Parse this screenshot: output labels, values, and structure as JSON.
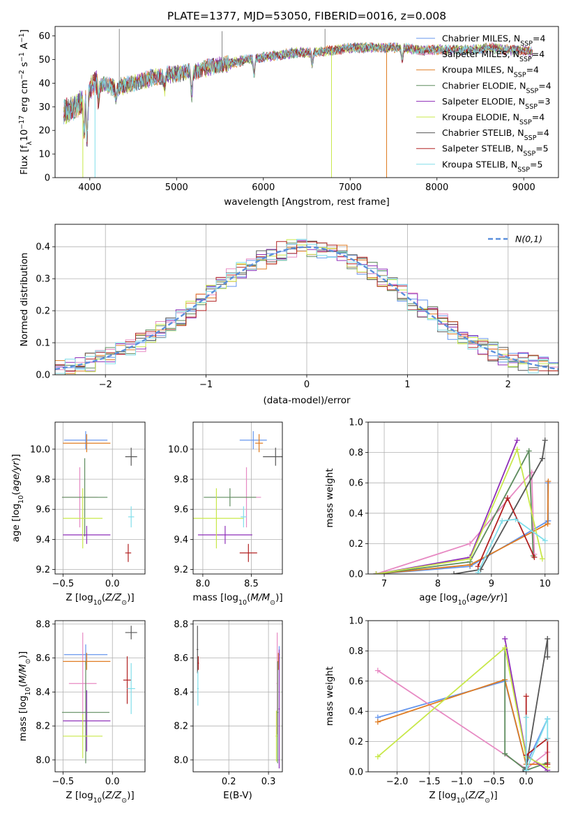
{
  "figure": {
    "title": "PLATE=1377, MJD=53050, FIBERID=0016, z=0.008"
  },
  "series": [
    {
      "name": "Chabrier MILES, N$_{SSP}$=4",
      "sub": "SSP",
      "label_pre": "Chabrier MILES, N",
      "label_post": "=4",
      "color": "#6495ed"
    },
    {
      "name": "Salpeter MILES, N$_{SSP}$=4",
      "sub": "SSP",
      "label_pre": "Salpeter MILES, N",
      "label_post": "=4",
      "color": "#e78ac3"
    },
    {
      "name": "Kroupa MILES, N$_{SSP}$=4",
      "sub": "SSP",
      "label_pre": "Kroupa MILES, N",
      "label_post": "=4",
      "color": "#e07b20"
    },
    {
      "name": "Chabrier ELODIE, N$_{SSP}$=4",
      "sub": "SSP",
      "label_pre": "Chabrier ELODIE, N",
      "label_post": "=4",
      "color": "#5e8c5e"
    },
    {
      "name": "Salpeter ELODIE, N$_{SSP}$=3",
      "sub": "SSP",
      "label_pre": "Salpeter ELODIE, N",
      "label_post": "=3",
      "color": "#8e2eb8"
    },
    {
      "name": "Kroupa ELODIE, N$_{SSP}$=4",
      "sub": "SSP",
      "label_pre": "Kroupa ELODIE, N",
      "label_post": "=4",
      "color": "#c8e84a"
    },
    {
      "name": "Chabrier STELIB, N$_{SSP}$=4",
      "sub": "SSP",
      "label_pre": "Chabrier STELIB, N",
      "label_post": "=4",
      "color": "#555555"
    },
    {
      "name": "Salpeter STELIB, N$_{SSP}$=5",
      "sub": "SSP",
      "label_pre": "Salpeter STELIB, N",
      "label_post": "=5",
      "color": "#b22222"
    },
    {
      "name": "Kroupa STELIB, N$_{SSP}$=5",
      "sub": "SSP",
      "label_pre": "Kroupa STELIB, N",
      "label_post": "=5",
      "color": "#80deea"
    }
  ],
  "chart_data": [
    {
      "id": "spectrum",
      "type": "line",
      "xlabel": "wavelength [Angstrom, rest frame]",
      "ylabel": "Flux [f$_\\lambda$10$^{-17}$ erg cm$^{-2}$ s$^{-1}$ A$^{-1}$]",
      "xlim": [
        3600,
        9400
      ],
      "ylim": [
        0,
        64
      ],
      "xticks": [
        4000,
        5000,
        6000,
        7000,
        8000,
        9000
      ],
      "yticks": [
        0,
        10,
        20,
        30,
        40,
        50,
        60
      ],
      "grid": false,
      "legend": "top-right",
      "continuum": {
        "x": [
          3700,
          3800,
          3900,
          4000,
          4050,
          4100,
          4200,
          4300,
          4400,
          4500,
          4600,
          4800,
          5000,
          5200,
          5400,
          5600,
          5800,
          6000,
          6200,
          6400,
          6600,
          6800,
          7000,
          7200,
          7400,
          7600,
          7800,
          8000,
          8200,
          8400,
          8600,
          8800,
          9000,
          9100
        ],
        "y": [
          28,
          29,
          32,
          37,
          41,
          40,
          39,
          38,
          39,
          40,
          41,
          43,
          44,
          45,
          47,
          48,
          50,
          51,
          52,
          53,
          53,
          54,
          55,
          55,
          55,
          55,
          54,
          54,
          54,
          54,
          55,
          54,
          54,
          53
        ]
      },
      "features": [
        {
          "x": 3934,
          "y": 18
        },
        {
          "x": 3969,
          "y": 15
        },
        {
          "x": 4102,
          "y": 33
        },
        {
          "x": 4300,
          "y": 34
        },
        {
          "x": 4861,
          "y": 38
        },
        {
          "x": 5175,
          "y": 35
        },
        {
          "x": 5893,
          "y": 44
        },
        {
          "x": 6563,
          "y": 48
        },
        {
          "x": 7600,
          "y": 50
        }
      ],
      "spikes_up": [
        {
          "x": 4340,
          "y": 63
        },
        {
          "x": 5525,
          "y": 62
        },
        {
          "x": 6710,
          "y": 63
        }
      ],
      "spikes_down": [
        {
          "x": 3920,
          "y": 0,
          "series": 5
        },
        {
          "x": 4060,
          "y": 0,
          "series": 8
        },
        {
          "x": 6785,
          "y": 0,
          "series": 5
        },
        {
          "x": 7420,
          "y": 0,
          "series": 2
        }
      ]
    },
    {
      "id": "residual_hist",
      "type": "histogram",
      "xlabel": "(data-model)/error",
      "ylabel": "Normed distribution",
      "xlim": [
        -2.5,
        2.5
      ],
      "ylim": [
        0,
        0.47
      ],
      "xticks": [
        -2,
        -1,
        0,
        1,
        2
      ],
      "yticks": [
        0.0,
        0.1,
        0.2,
        0.3,
        0.4
      ],
      "grid": true,
      "legend": "top-right",
      "gaussian_label": "N(0,1)",
      "gaussian": {
        "mean": 0,
        "sigma": 1,
        "color": "#5b8fdc"
      },
      "bin_width": 0.1
    },
    {
      "id": "age_vs_Z",
      "type": "scatter",
      "xlabel": "Z [log$_{10}$(Z/Z$_\\odot$)]",
      "ylabel": "age  [log$_{10}$(age/yr)]",
      "xlim": [
        -0.58,
        0.33
      ],
      "ylim": [
        9.17,
        10.18
      ],
      "xticks": [
        -0.5,
        0.0
      ],
      "yticks": [
        9.2,
        9.4,
        9.6,
        9.8,
        10.0
      ],
      "grid": true,
      "points": [
        {
          "s": 0,
          "x": -0.27,
          "y": 10.06,
          "ex": 0.22,
          "ey": 0.06
        },
        {
          "s": 1,
          "x": -0.33,
          "y": 9.68,
          "ex": 0.18,
          "ey": 0.2
        },
        {
          "s": 2,
          "x": -0.26,
          "y": 10.04,
          "ex": 0.24,
          "ey": 0.06
        },
        {
          "s": 3,
          "x": -0.28,
          "y": 9.68,
          "ex": 0.23,
          "ey": 0.26
        },
        {
          "s": 4,
          "x": -0.26,
          "y": 9.43,
          "ex": 0.24,
          "ey": 0.06
        },
        {
          "s": 5,
          "x": -0.3,
          "y": 9.54,
          "ex": 0.2,
          "ey": 0.2
        },
        {
          "s": 6,
          "x": 0.19,
          "y": 9.95,
          "ex": 0.06,
          "ey": 0.06
        },
        {
          "s": 7,
          "x": 0.16,
          "y": 9.31,
          "ex": 0.03,
          "ey": 0.06
        },
        {
          "s": 8,
          "x": 0.19,
          "y": 9.55,
          "ex": 0.03,
          "ey": 0.07
        }
      ]
    },
    {
      "id": "age_vs_mass",
      "type": "scatter",
      "xlabel": "mass [log$_{10}$(M/M$_\\odot$)]",
      "ylabel": "",
      "xlim": [
        7.9,
        8.82
      ],
      "ylim": [
        9.17,
        10.18
      ],
      "xticks": [
        8.0,
        8.5
      ],
      "yticks": [
        9.2,
        9.4,
        9.6,
        9.8,
        10.0
      ],
      "grid": true,
      "points": [
        {
          "s": 0,
          "x": 8.52,
          "y": 10.06,
          "ex": 0.14,
          "ey": 0.06
        },
        {
          "s": 1,
          "x": 8.45,
          "y": 9.68,
          "ex": 0.15,
          "ey": 0.2
        },
        {
          "s": 2,
          "x": 8.58,
          "y": 10.04,
          "ex": 0.04,
          "ey": 0.06
        },
        {
          "s": 3,
          "x": 8.28,
          "y": 9.68,
          "ex": 0.27,
          "ey": 0.06
        },
        {
          "s": 4,
          "x": 8.23,
          "y": 9.43,
          "ex": 0.28,
          "ey": 0.06
        },
        {
          "s": 5,
          "x": 8.14,
          "y": 9.54,
          "ex": 0.28,
          "ey": 0.2
        },
        {
          "s": 6,
          "x": 8.75,
          "y": 9.95,
          "ex": 0.13,
          "ey": 0.06
        },
        {
          "s": 7,
          "x": 8.47,
          "y": 9.31,
          "ex": 0.09,
          "ey": 0.06
        },
        {
          "s": 8,
          "x": 8.42,
          "y": 9.55,
          "ex": 0.03,
          "ey": 0.07
        }
      ]
    },
    {
      "id": "weight_vs_age",
      "type": "line",
      "xlabel": "age  [log$_{10}$(age/yr)]",
      "ylabel": "mass weight",
      "xlim": [
        6.7,
        10.25
      ],
      "ylim": [
        0,
        1
      ],
      "xticks": [
        7,
        8,
        9,
        10
      ],
      "yticks": [
        0.0,
        0.2,
        0.4,
        0.6,
        0.8,
        1.0
      ],
      "grid": true,
      "lines": [
        {
          "s": 0,
          "x": [
            6.85,
            8.6,
            10.06,
            10.05
          ],
          "y": [
            0.0,
            0.05,
            0.35,
            0.6
          ]
        },
        {
          "s": 1,
          "x": [
            6.85,
            8.6,
            9.75,
            9.8
          ],
          "y": [
            0.0,
            0.2,
            0.67,
            0.13
          ]
        },
        {
          "s": 2,
          "x": [
            6.85,
            8.6,
            10.05,
            10.06
          ],
          "y": [
            0.0,
            0.06,
            0.33,
            0.61
          ]
        },
        {
          "s": 3,
          "x": [
            6.85,
            8.6,
            9.7,
            9.78
          ],
          "y": [
            0.0,
            0.08,
            0.81,
            0.12
          ]
        },
        {
          "s": 4,
          "x": [
            6.85,
            8.6,
            9.48
          ],
          "y": [
            0.0,
            0.11,
            0.88
          ]
        },
        {
          "s": 5,
          "x": [
            6.85,
            8.6,
            9.48,
            9.95
          ],
          "y": [
            0.0,
            0.1,
            0.82,
            0.1
          ]
        },
        {
          "s": 6,
          "x": [
            8.3,
            8.8,
            9.95,
            10.0
          ],
          "y": [
            0.0,
            0.03,
            0.76,
            0.88
          ]
        },
        {
          "s": 7,
          "x": [
            8.75,
            9.3,
            9.8
          ],
          "y": [
            0.05,
            0.5,
            0.11
          ]
        },
        {
          "s": 8,
          "x": [
            8.75,
            9.2,
            9.45,
            10.0
          ],
          "y": [
            0.01,
            0.35,
            0.36,
            0.22
          ]
        }
      ]
    },
    {
      "id": "mass_vs_Z",
      "type": "scatter",
      "xlabel": "Z [log$_{10}$(Z/Z$_\\odot$)]",
      "ylabel": "mass [log$_{10}$(M/M$_\\odot$)]",
      "xlim": [
        -0.58,
        0.33
      ],
      "ylim": [
        7.93,
        8.82
      ],
      "xticks": [
        -0.5,
        0.0
      ],
      "yticks": [
        8.0,
        8.2,
        8.4,
        8.6,
        8.8
      ],
      "grid": true,
      "points": [
        {
          "s": 0,
          "x": -0.27,
          "y": 8.62,
          "ex": 0.22,
          "ey": 0.06
        },
        {
          "s": 1,
          "x": -0.3,
          "y": 8.45,
          "ex": 0.14,
          "ey": 0.3
        },
        {
          "s": 2,
          "x": -0.26,
          "y": 8.58,
          "ex": 0.24,
          "ey": 0.05
        },
        {
          "s": 3,
          "x": -0.27,
          "y": 8.28,
          "ex": 0.24,
          "ey": 0.3
        },
        {
          "s": 4,
          "x": -0.26,
          "y": 8.23,
          "ex": 0.24,
          "ey": 0.18
        },
        {
          "s": 5,
          "x": -0.3,
          "y": 8.14,
          "ex": 0.2,
          "ey": 0.13
        },
        {
          "s": 6,
          "x": 0.19,
          "y": 8.75,
          "ex": 0.06,
          "ey": 0.04
        },
        {
          "s": 7,
          "x": 0.15,
          "y": 8.47,
          "ex": 0.04,
          "ey": 0.14
        },
        {
          "s": 8,
          "x": 0.19,
          "y": 8.42,
          "ex": 0.04,
          "ey": 0.15
        }
      ]
    },
    {
      "id": "mass_vs_ebv",
      "type": "scatter",
      "xlabel": "E(B-V)",
      "ylabel": "",
      "xlim": [
        0.11,
        0.335
      ],
      "ylim": [
        7.93,
        8.82
      ],
      "xticks": [
        0.2,
        0.3
      ],
      "yticks": [
        8.0,
        8.2,
        8.4,
        8.6,
        8.8
      ],
      "grid": true,
      "points": [
        {
          "s": 0,
          "x": 0.327,
          "y": 8.62,
          "ex": 0.002,
          "ey": 0.05
        },
        {
          "s": 1,
          "x": 0.322,
          "y": 8.45,
          "ex": 0.002,
          "ey": 0.3
        },
        {
          "s": 2,
          "x": 0.325,
          "y": 8.58,
          "ex": 0.002,
          "ey": 0.05
        },
        {
          "s": 3,
          "x": 0.323,
          "y": 8.28,
          "ex": 0.002,
          "ey": 0.3
        },
        {
          "s": 4,
          "x": 0.327,
          "y": 8.3,
          "ex": 0.002,
          "ey": 0.35
        },
        {
          "s": 5,
          "x": 0.32,
          "y": 8.14,
          "ex": 0.002,
          "ey": 0.15
        },
        {
          "s": 6,
          "x": 0.121,
          "y": 8.65,
          "ex": 0.002,
          "ey": 0.14
        },
        {
          "s": 7,
          "x": 0.123,
          "y": 8.57,
          "ex": 0.002,
          "ey": 0.04
        },
        {
          "s": 8,
          "x": 0.122,
          "y": 8.42,
          "ex": 0.002,
          "ey": 0.1
        }
      ]
    },
    {
      "id": "weight_vs_Z",
      "type": "line",
      "xlabel": "Z [log$_{10}$(Z/Z$_\\odot$)]",
      "ylabel": "mass weight",
      "xlim": [
        -2.45,
        0.5
      ],
      "ylim": [
        0,
        1
      ],
      "xticks": [
        -2.0,
        -1.5,
        -1.0,
        -0.5,
        0.0
      ],
      "yticks": [
        0.0,
        0.2,
        0.4,
        0.6,
        0.8,
        1.0
      ],
      "grid": true,
      "lines": [
        {
          "s": 0,
          "x": [
            -2.3,
            -0.33,
            0.0,
            0.33
          ],
          "y": [
            0.36,
            0.6,
            0.05,
            0.35
          ]
        },
        {
          "s": 1,
          "x": [
            -2.3,
            0.0,
            0.33
          ],
          "y": [
            0.67,
            0.02,
            0.13
          ]
        },
        {
          "s": 2,
          "x": [
            -2.3,
            -0.33,
            0.0,
            0.33
          ],
          "y": [
            0.33,
            0.61,
            0.05,
            0.05
          ]
        },
        {
          "s": 3,
          "x": [
            -0.33,
            -0.33,
            0.0,
            0.33
          ],
          "y": [
            0.81,
            0.12,
            0.01,
            0.06
          ]
        },
        {
          "s": 4,
          "x": [
            -0.33,
            0.0,
            0.33
          ],
          "y": [
            0.88,
            0.11,
            0.01
          ]
        },
        {
          "s": 5,
          "x": [
            -2.3,
            -0.33,
            0.0,
            0.33
          ],
          "y": [
            0.1,
            0.82,
            0.1,
            0.03
          ]
        },
        {
          "s": 6,
          "x": [
            -0.05,
            0.0,
            0.33,
            0.33
          ],
          "y": [
            0.0,
            0.03,
            0.88,
            0.76
          ]
        },
        {
          "s": 7,
          "x": [
            0.0,
            0.0,
            0.33,
            0.33
          ],
          "y": [
            0.5,
            0.11,
            0.22,
            0.05
          ]
        },
        {
          "s": 8,
          "x": [
            0.0,
            0.0,
            0.33,
            0.33
          ],
          "y": [
            0.36,
            0.01,
            0.35,
            0.22
          ]
        }
      ]
    }
  ]
}
